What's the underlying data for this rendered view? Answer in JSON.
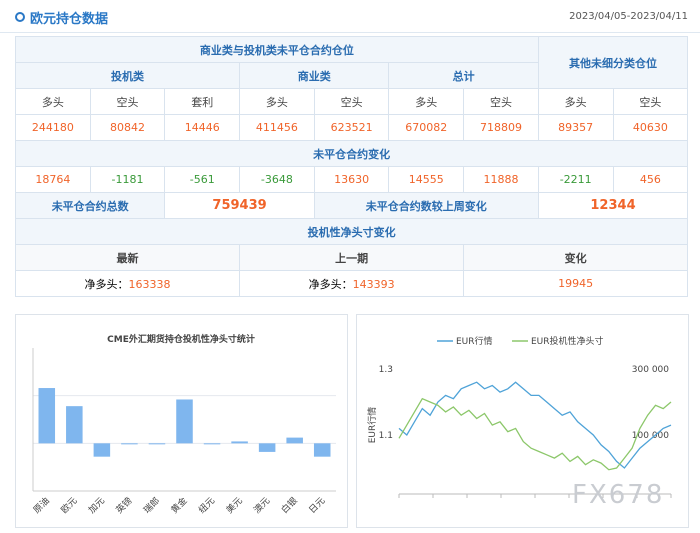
{
  "header": {
    "title": "欧元持仓数据",
    "date_range": "2023/04/05-2023/04/11"
  },
  "table": {
    "group_title": "商业类与投机类未平仓合约仓位",
    "other_title": "其他未细分类仓位",
    "groups": [
      "投机类",
      "商业类",
      "总计"
    ],
    "columns": [
      "多头",
      "空头",
      "套利",
      "多头",
      "空头",
      "多头",
      "空头",
      "多头",
      "空头"
    ],
    "positions": [
      244180,
      80842,
      14446,
      411456,
      623521,
      670082,
      718809,
      89357,
      40630
    ],
    "change_title": "未平仓合约变化",
    "changes": [
      18764,
      -1181,
      -561,
      -3648,
      13630,
      14555,
      11888,
      -2211,
      456
    ],
    "total_label": "未平仓合约总数",
    "total": 759439,
    "weekly_change_label": "未平仓合约数较上周变化",
    "weekly_change": 12344,
    "net_title": "投机性净头寸变化",
    "net_columns": [
      "最新",
      "上一期",
      "变化"
    ],
    "net_label": "净多头：",
    "net_latest": 163338,
    "net_previous": 143393,
    "net_change": 19945
  },
  "chart_data": [
    {
      "type": "bar",
      "title": "CME外汇期货持仓投机性净头寸统计",
      "categories": [
        "原油",
        "欧元",
        "加元",
        "英镑",
        "瑞郎",
        "黄金",
        "纽元",
        "美元",
        "澳元",
        "白银",
        "日元"
      ],
      "values": [
        58,
        39,
        -14,
        -1,
        -1,
        46,
        -1,
        2,
        -9,
        6,
        -14
      ],
      "color": "#7fb6ee",
      "ylim": [
        -50,
        100
      ],
      "yticks": [
        0,
        50
      ],
      "grid": true
    },
    {
      "type": "line",
      "series": [
        {
          "name": "EUR行情",
          "color": "#4fa3d8",
          "axis": "y",
          "values": [
            1.12,
            1.1,
            1.14,
            1.18,
            1.16,
            1.2,
            1.22,
            1.21,
            1.24,
            1.25,
            1.26,
            1.24,
            1.25,
            1.23,
            1.24,
            1.26,
            1.24,
            1.22,
            1.22,
            1.2,
            1.18,
            1.16,
            1.17,
            1.14,
            1.12,
            1.1,
            1.07,
            1.05,
            1.02,
            1.0,
            1.03,
            1.06,
            1.08,
            1.1,
            1.12,
            1.13
          ]
        },
        {
          "name": "EUR投机性净头寸",
          "color": "#8cc76a",
          "axis": "y2",
          "values": [
            90000,
            130000,
            170000,
            210000,
            200000,
            190000,
            170000,
            185000,
            160000,
            175000,
            150000,
            165000,
            130000,
            140000,
            110000,
            120000,
            80000,
            60000,
            50000,
            40000,
            30000,
            45000,
            20000,
            35000,
            10000,
            25000,
            15000,
            -5000,
            0,
            30000,
            60000,
            120000,
            160000,
            190000,
            180000,
            200000
          ]
        }
      ],
      "y_label": "EUR行情",
      "ylim": [
        0.9,
        1.3
      ],
      "yticks": [
        1.1,
        1.3
      ],
      "y2lim": [
        -100000,
        300000
      ],
      "y2ticks": [
        {
          "value": 100000,
          "label": "100 000"
        },
        {
          "value": 300000,
          "label": "300 000"
        }
      ]
    }
  ],
  "watermark": "FX678"
}
